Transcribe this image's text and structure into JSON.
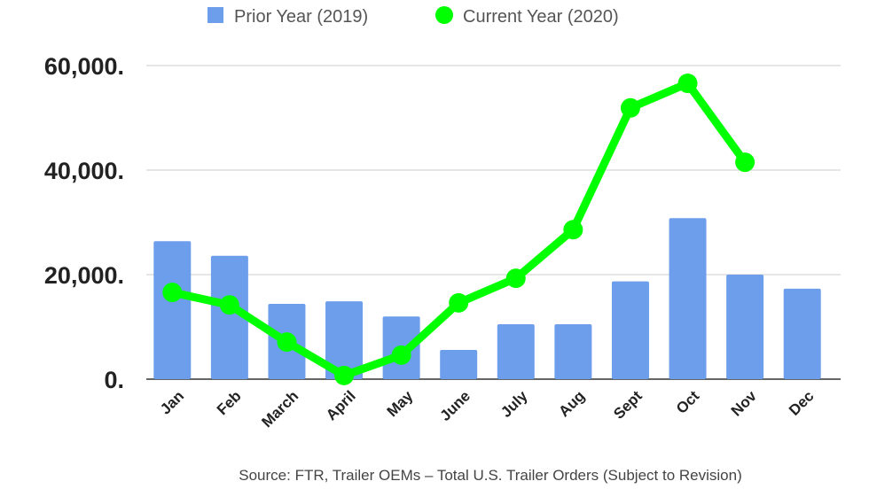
{
  "chart_data": {
    "type": "bar",
    "title": "",
    "xlabel": "",
    "ylabel": "",
    "ylim": [
      0,
      60000
    ],
    "grid": true,
    "legend_position": "top-center",
    "categories": [
      "Jan",
      "Feb",
      "March",
      "April",
      "May",
      "June",
      "July",
      "Aug",
      "Sept",
      "Oct",
      "Nov",
      "Dec"
    ],
    "yticks": [
      0,
      20000,
      40000,
      60000
    ],
    "ytick_labels": [
      "0.",
      "20,000.",
      "40,000.",
      "60,000."
    ],
    "series": [
      {
        "name": "Prior Year (2019)",
        "type": "bar",
        "color": "#6d9eeb",
        "values": [
          26400,
          23600,
          14400,
          14900,
          12000,
          5600,
          10500,
          10500,
          18700,
          30800,
          20000,
          17300
        ]
      },
      {
        "name": "Current Year (2020)",
        "type": "line",
        "color": "#00ff00",
        "values": [
          16600,
          14200,
          7100,
          700,
          4600,
          14600,
          19300,
          28600,
          51900,
          56600,
          41500,
          null
        ]
      }
    ],
    "annotation": "Source: FTR, Trailer OEMs – Total U.S. Trailer Orders (Subject to Revision)"
  }
}
